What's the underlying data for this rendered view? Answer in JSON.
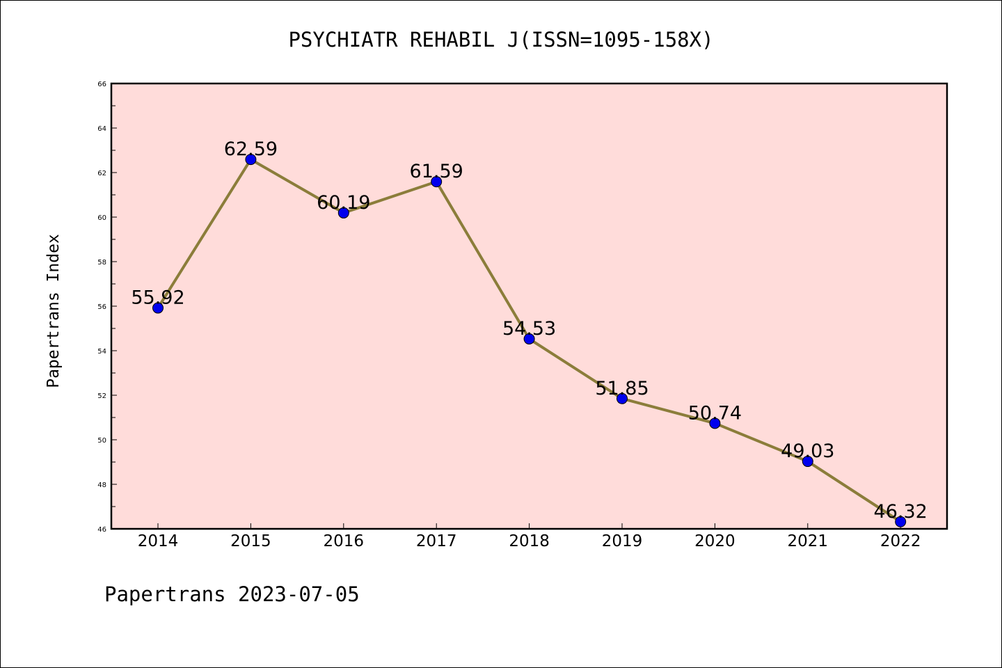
{
  "chart_data": {
    "type": "line",
    "title": "PSYCHIATR REHABIL J(ISSN=1095-158X)",
    "xlabel": "",
    "ylabel": "Papertrans Index",
    "categories": [
      "2014",
      "2015",
      "2016",
      "2017",
      "2018",
      "2019",
      "2020",
      "2021",
      "2022"
    ],
    "values": [
      55.92,
      62.59,
      60.19,
      61.59,
      54.53,
      51.85,
      50.74,
      49.03,
      46.32
    ],
    "data_labels": [
      "55.92",
      "62.59",
      "60.19",
      "61.59",
      "54.53",
      "51.85",
      "50.74",
      "49.03",
      "46.32"
    ],
    "ylim": [
      46,
      66
    ],
    "yticks": [
      "46",
      "48",
      "50",
      "52",
      "54",
      "56",
      "58",
      "60",
      "62",
      "64",
      "66"
    ],
    "grid": false,
    "legend": "none",
    "colors": {
      "plot_background": "#ffdcda",
      "line": "#8b7d3a",
      "marker": "#0000ee"
    }
  },
  "footer": "Papertrans 2023-07-05"
}
